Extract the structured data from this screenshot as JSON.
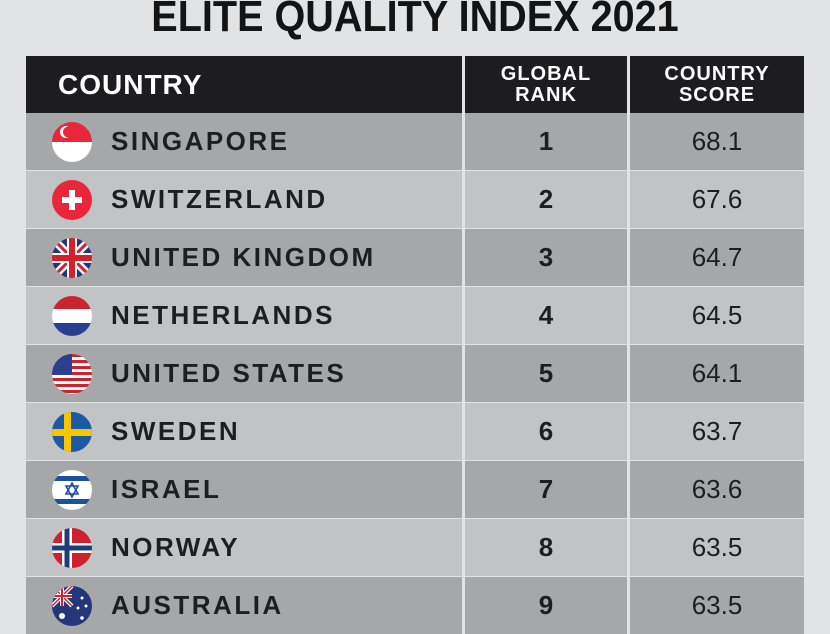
{
  "chart_data": {
    "type": "table",
    "title": "ELITE QUALITY INDEX 2021",
    "columns": [
      "COUNTRY",
      "GLOBAL RANK",
      "COUNTRY SCORE"
    ],
    "header": {
      "country": "COUNTRY",
      "rank_line1": "GLOBAL",
      "rank_line2": "RANK",
      "score_line1": "COUNTRY",
      "score_line2": "SCORE"
    },
    "rows": [
      {
        "flag": "singapore-flag",
        "country": "SINGAPORE",
        "rank": "1",
        "score": "68.1"
      },
      {
        "flag": "switzerland-flag",
        "country": "SWITZERLAND",
        "rank": "2",
        "score": "67.6"
      },
      {
        "flag": "uk-flag",
        "country": "UNITED KINGDOM",
        "rank": "3",
        "score": "64.7"
      },
      {
        "flag": "netherlands-flag",
        "country": "NETHERLANDS",
        "rank": "4",
        "score": "64.5"
      },
      {
        "flag": "usa-flag",
        "country": "UNITED STATES",
        "rank": "5",
        "score": "64.1"
      },
      {
        "flag": "sweden-flag",
        "country": "SWEDEN",
        "rank": "6",
        "score": "63.7"
      },
      {
        "flag": "israel-flag",
        "country": "ISRAEL",
        "rank": "7",
        "score": "63.6"
      },
      {
        "flag": "norway-flag",
        "country": "NORWAY",
        "rank": "8",
        "score": "63.5"
      },
      {
        "flag": "australia-flag",
        "country": "AUSTRALIA",
        "rank": "9",
        "score": "63.5"
      }
    ]
  }
}
